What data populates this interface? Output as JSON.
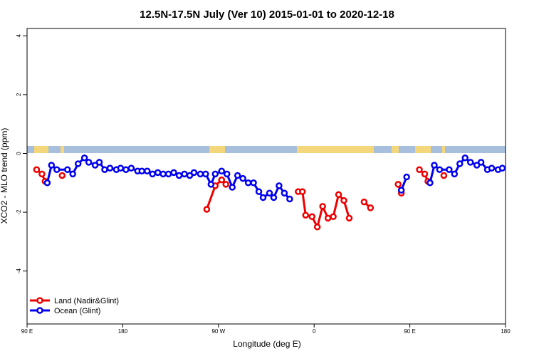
{
  "chart_data": {
    "type": "line",
    "title": "12.5N-17.5N July (Ver 10)   2015-01-01 to 2020-12-18",
    "x_label": "Longitude (deg E)",
    "y_label": "XCO2 - MLO trend (ppm)",
    "xlim": [
      90,
      540
    ],
    "ylim": [
      -5.8,
      4.25
    ],
    "xticks": [
      {
        "value": 90,
        "label": "90 E"
      },
      {
        "value": 180,
        "label": "180"
      },
      {
        "value": 270,
        "label": "90 W"
      },
      {
        "value": 360,
        "label": "0"
      },
      {
        "value": 450,
        "label": "90 E"
      },
      {
        "value": 540,
        "label": "180"
      }
    ],
    "yticks": [
      -4,
      -2,
      0,
      2,
      4
    ],
    "grid": false,
    "legend": "bottom-left",
    "series": [
      {
        "name": "Land (Nadir&Glint)",
        "color": "#ee0000",
        "x": [
          99,
          104,
          107,
          null,
          123,
          null,
          259,
          267,
          273,
          277,
          null,
          345,
          349,
          352,
          358,
          363,
          368,
          373,
          378,
          383,
          388,
          393,
          null,
          407,
          413,
          null,
          439,
          442,
          null,
          459,
          464,
          467,
          null,
          482
        ],
        "values": [
          -0.55,
          -0.7,
          -0.95,
          null,
          -0.75,
          null,
          -1.9,
          -1.1,
          -0.9,
          -1.05,
          null,
          -1.3,
          -1.3,
          -2.1,
          -2.15,
          -2.5,
          -1.8,
          -2.2,
          -2.15,
          -1.4,
          -1.6,
          -2.2,
          null,
          -1.65,
          -1.85,
          null,
          -1.05,
          -1.35,
          null,
          -0.55,
          -0.7,
          -0.95,
          null,
          -0.75
        ]
      },
      {
        "name": "Ocean (Glint)",
        "color": "#0000ee",
        "x": [
          109,
          113,
          118,
          128,
          133,
          138,
          144,
          148,
          154,
          158,
          163,
          168,
          174,
          178,
          183,
          188,
          194,
          198,
          203,
          208,
          213,
          218,
          223,
          228,
          233,
          238,
          243,
          247,
          253,
          258,
          263,
          267,
          273,
          278,
          283,
          288,
          293,
          298,
          303,
          308,
          312,
          318,
          322,
          327,
          332,
          337,
          null,
          442,
          447,
          null,
          469,
          473,
          478,
          487,
          492,
          497,
          502,
          507,
          513,
          517,
          523,
          527,
          533,
          537
        ],
        "values": [
          -1.0,
          -0.4,
          -0.55,
          -0.55,
          -0.7,
          -0.35,
          -0.15,
          -0.3,
          -0.4,
          -0.3,
          -0.55,
          -0.5,
          -0.55,
          -0.5,
          -0.55,
          -0.5,
          -0.6,
          -0.6,
          -0.6,
          -0.7,
          -0.65,
          -0.7,
          -0.7,
          -0.65,
          -0.75,
          -0.7,
          -0.75,
          -0.65,
          -0.7,
          -0.7,
          -1.05,
          -0.7,
          -0.6,
          -0.7,
          -1.15,
          -0.75,
          -0.85,
          -1.0,
          -1.0,
          -1.3,
          -1.5,
          -1.35,
          -1.5,
          -1.1,
          -1.35,
          -1.55,
          null,
          -1.25,
          -0.8,
          null,
          -1.0,
          -0.4,
          -0.55,
          -0.55,
          -0.7,
          -0.35,
          -0.15,
          -0.3,
          -0.4,
          -0.3,
          -0.55,
          -0.5,
          -0.55,
          -0.5
        ]
      }
    ]
  }
}
